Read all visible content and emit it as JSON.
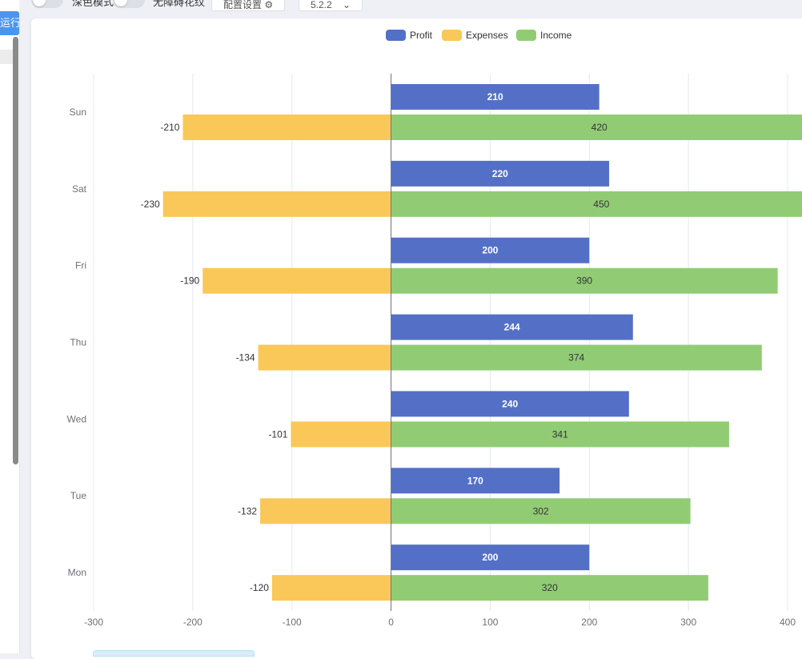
{
  "toolbar": {
    "dark_mode_label": "深色模式",
    "accessible_pattern_label": "无障碍花纹",
    "theme_settings_label": "配置设置",
    "version_value": "5.2.2"
  },
  "sidebar": {
    "run_label": "运行"
  },
  "colors": {
    "profit": "#5470c6",
    "expenses": "#fac858",
    "income": "#91cc75"
  },
  "chart_data": {
    "type": "bar",
    "orientation": "horizontal",
    "categories": [
      "Mon",
      "Tue",
      "Wed",
      "Thu",
      "Fri",
      "Sat",
      "Sun"
    ],
    "series": [
      {
        "name": "Profit",
        "values": [
          200,
          170,
          240,
          244,
          200,
          220,
          210
        ]
      },
      {
        "name": "Income",
        "values": [
          320,
          302,
          341,
          374,
          390,
          450,
          420
        ]
      },
      {
        "name": "Expenses",
        "values": [
          -120,
          -132,
          -101,
          -134,
          -190,
          -230,
          -210
        ]
      }
    ],
    "xlim": [
      -300,
      400
    ],
    "xticks": [
      -300,
      -200,
      -100,
      0,
      100,
      200,
      300,
      400
    ],
    "legend": [
      "Profit",
      "Expenses",
      "Income"
    ],
    "legend_position": "top-center",
    "grid": true
  }
}
